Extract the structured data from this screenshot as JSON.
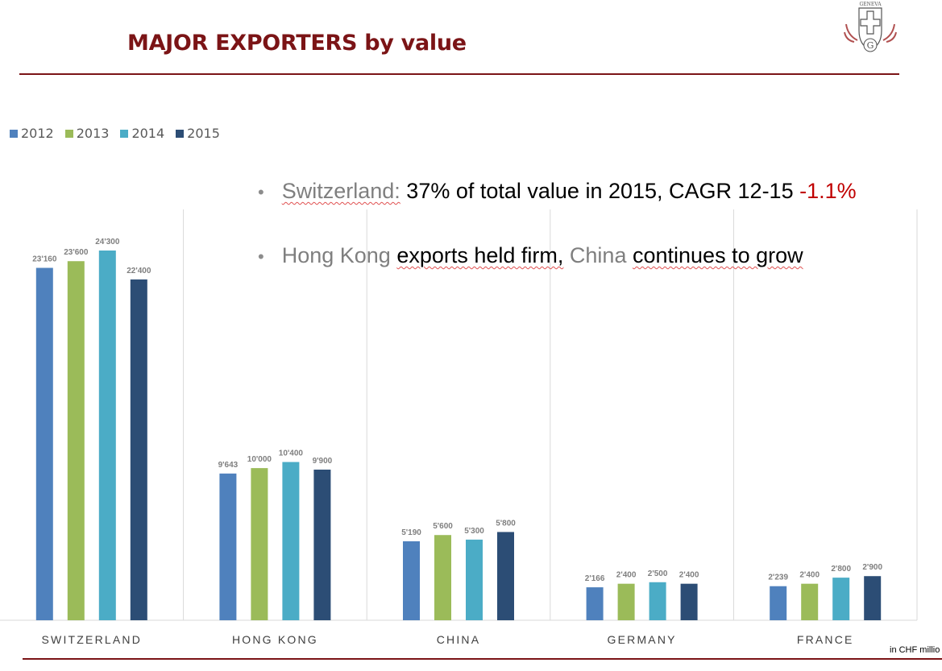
{
  "title": "MAJOR EXPORTERS by value",
  "logo": {
    "text": "GENEVA",
    "letter": "G"
  },
  "legend": [
    {
      "label": "2012",
      "color": "#4f81bd"
    },
    {
      "label": "2013",
      "color": "#9bbb59"
    },
    {
      "label": "2014",
      "color": "#4bacc6"
    },
    {
      "label": "2015",
      "color": "#2c4d75"
    }
  ],
  "bullets": {
    "b1": {
      "country": "Switzerland:",
      "stat": "37% of total value in 2015, CAGR 12-15",
      "cagr": "-1.1%"
    },
    "b2": {
      "hk": "Hong Kong",
      "held": "exports held firm,",
      "china": "China",
      "grow": "continues to grow"
    }
  },
  "note": "in CHF millio",
  "chart_data": {
    "type": "bar",
    "categories": [
      "SWITZERLAND",
      "HONG KONG",
      "CHINA",
      "GERMANY",
      "FRANCE"
    ],
    "series": [
      {
        "name": "2012",
        "values": [
          23160,
          9643,
          5190,
          2166,
          2239
        ],
        "labels": [
          "23'160",
          "9'643",
          "5'190",
          "2'166",
          "2'239"
        ]
      },
      {
        "name": "2013",
        "values": [
          23600,
          10000,
          5600,
          2400,
          2400
        ],
        "labels": [
          "23'600",
          "10'000",
          "5'600",
          "2'400",
          "2'400"
        ]
      },
      {
        "name": "2014",
        "values": [
          24300,
          10400,
          5300,
          2500,
          2800
        ],
        "labels": [
          "24'300",
          "10'400",
          "5'300",
          "2'500",
          "2'800"
        ]
      },
      {
        "name": "2015",
        "values": [
          22400,
          9900,
          5800,
          2400,
          2900
        ],
        "labels": [
          "22'400",
          "9'900",
          "5'800",
          "2'400",
          "2'900"
        ]
      }
    ],
    "colors": [
      "#4f81bd",
      "#9bbb59",
      "#4bacc6",
      "#2c4d75"
    ],
    "ylim": [
      0,
      27000
    ],
    "legend_position": "top-left",
    "grid": false
  }
}
